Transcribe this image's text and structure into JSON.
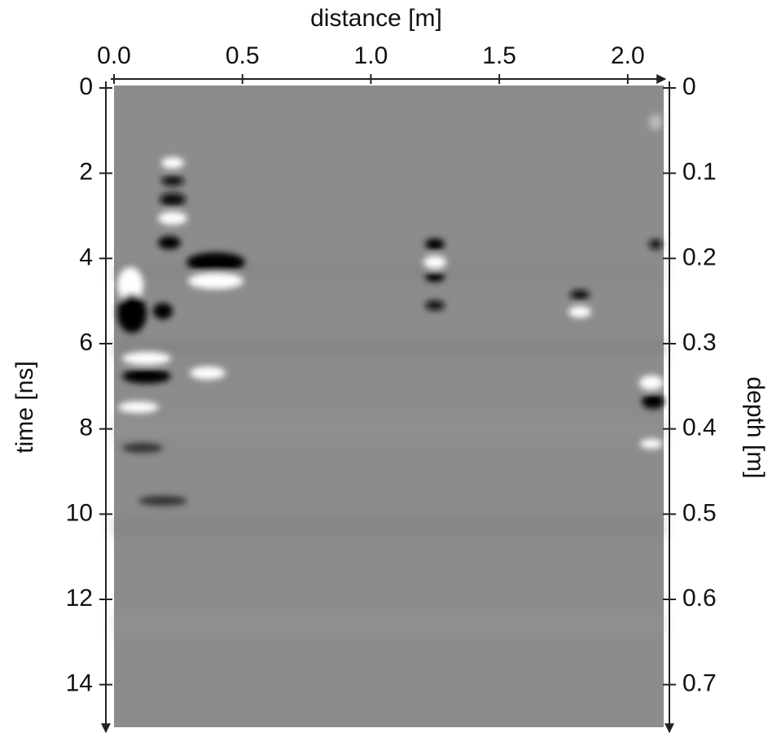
{
  "chart_data": {
    "type": "radargram",
    "title": "distance [m]",
    "y_label": "time [ns]",
    "y2_label": "depth [m]",
    "xlim": [
      0,
      2.14
    ],
    "xticks": [
      {
        "value": 0,
        "label": "0.0"
      },
      0.5,
      {
        "value": 1,
        "label": "1.0"
      },
      1.5,
      {
        "value": 2,
        "label": "2.0"
      }
    ],
    "ylim": [
      0,
      15
    ],
    "yticks": [
      0,
      2,
      4,
      6,
      8,
      10,
      12,
      14
    ],
    "y2lim": [
      0,
      0.75
    ],
    "y2ticks": [
      0,
      0.1,
      0.2,
      0.3,
      0.4,
      0.5,
      0.6,
      0.7
    ]
  }
}
